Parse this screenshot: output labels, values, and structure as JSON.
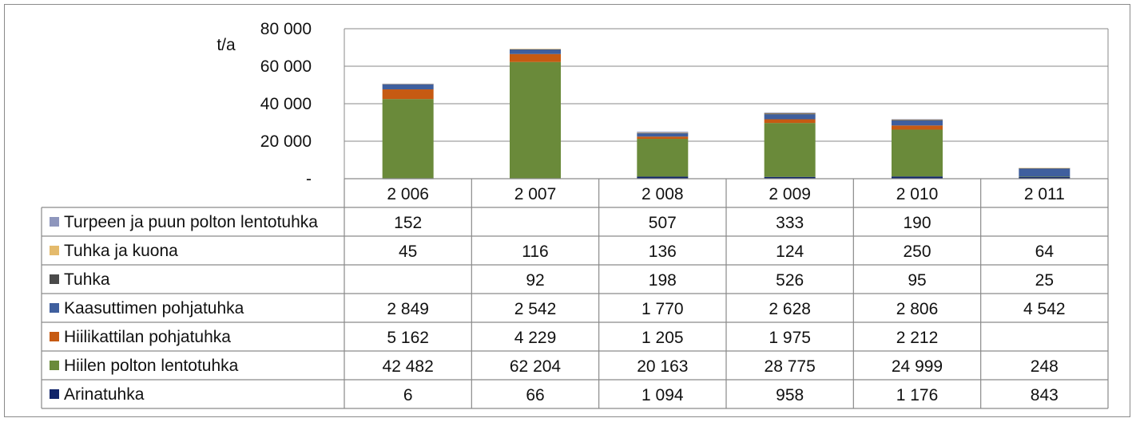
{
  "chart_data": {
    "type": "bar",
    "stacked": true,
    "ylabel": "t/a",
    "ylim": [
      0,
      80000
    ],
    "yticks": [
      {
        "value": 0,
        "label": "-"
      },
      {
        "value": 20000,
        "label": "20 000"
      },
      {
        "value": 40000,
        "label": "40 000"
      },
      {
        "value": 60000,
        "label": "60 000"
      },
      {
        "value": 80000,
        "label": "80 000"
      }
    ],
    "grid": true,
    "legend": "table-left",
    "categories": [
      "2 006",
      "2 007",
      "2 008",
      "2 009",
      "2 010",
      "2 011"
    ],
    "series": [
      {
        "name": "Turpeen ja puun polton lentotuhka",
        "color": "#8E96BD",
        "values": [
          152,
          null,
          507,
          333,
          190,
          null
        ],
        "labels": [
          "152",
          "",
          "507",
          "333",
          "190",
          ""
        ]
      },
      {
        "name": "Tuhka ja kuona",
        "color": "#E4BA6C",
        "values": [
          45,
          116,
          136,
          124,
          250,
          64
        ],
        "labels": [
          "45",
          "116",
          "136",
          "124",
          "250",
          "64"
        ]
      },
      {
        "name": "Tuhka",
        "color": "#4A4A4A",
        "values": [
          null,
          92,
          198,
          526,
          95,
          25
        ],
        "labels": [
          "",
          "92",
          "198",
          "526",
          "95",
          "25"
        ]
      },
      {
        "name": "Kaasuttimen pohjatuhka",
        "color": "#3F5F9E",
        "values": [
          2849,
          2542,
          1770,
          2628,
          2806,
          4542
        ],
        "labels": [
          "2 849",
          "2 542",
          "1 770",
          "2 628",
          "2 806",
          "4 542"
        ]
      },
      {
        "name": "Hiilikattilan pohjatuhka",
        "color": "#C65A12",
        "values": [
          5162,
          4229,
          1205,
          1975,
          2212,
          null
        ],
        "labels": [
          "5 162",
          "4 229",
          "1 205",
          "1 975",
          "2 212",
          ""
        ]
      },
      {
        "name": "Hiilen polton lentotuhka",
        "color": "#6A8A3A",
        "values": [
          42482,
          62204,
          20163,
          28775,
          24999,
          248
        ],
        "labels": [
          "42 482",
          "62 204",
          "20 163",
          "28 775",
          "24 999",
          "248"
        ]
      },
      {
        "name": "Arinatuhka",
        "color": "#10246A",
        "values": [
          6,
          66,
          1094,
          958,
          1176,
          843
        ],
        "labels": [
          "6",
          "66",
          "1 094",
          "958",
          "1 176",
          "843"
        ]
      }
    ],
    "stack_order": [
      "Arinatuhka",
      "Hiilen polton lentotuhka",
      "Hiilikattilan pohjatuhka",
      "Kaasuttimen pohjatuhka",
      "Tuhka",
      "Tuhka ja kuona",
      "Turpeen ja puun polton lentotuhka"
    ]
  }
}
